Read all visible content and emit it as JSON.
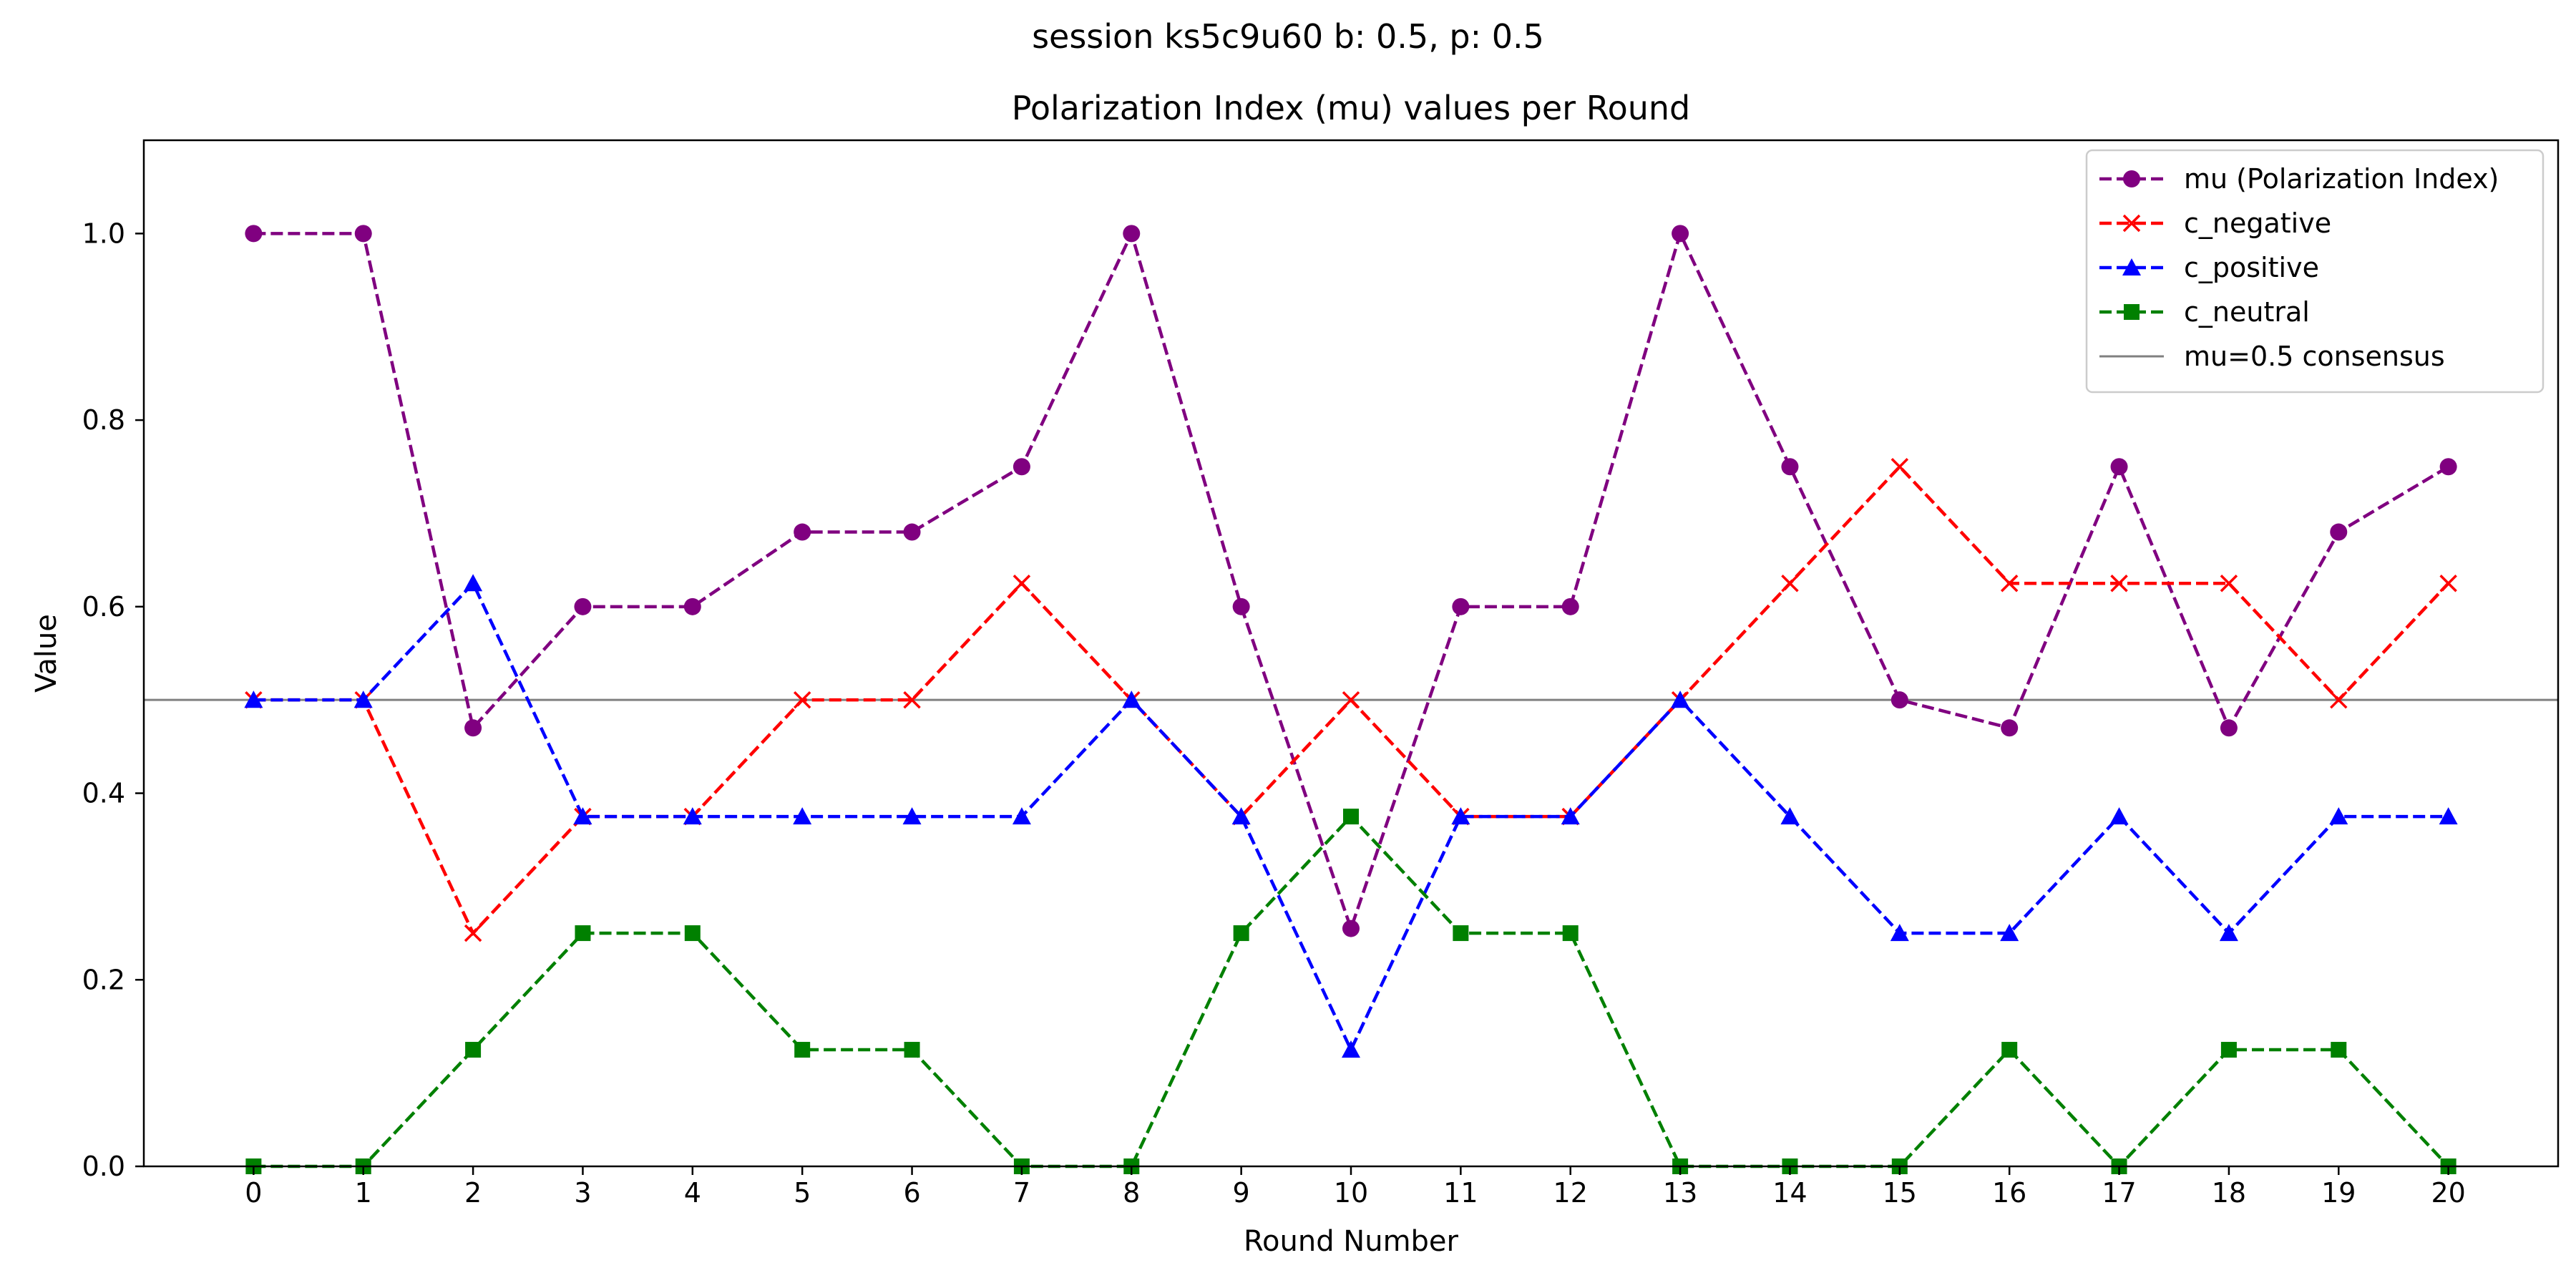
{
  "suptitle": "session ks5c9u60 b: 0.5, p: 0.5",
  "chart_data": {
    "type": "line",
    "title": "Polarization Index (mu) values per Round",
    "xlabel": "Round Number",
    "ylabel": "Value",
    "xlim": [
      -1,
      21
    ],
    "ylim": [
      0,
      1.1
    ],
    "x": [
      0,
      1,
      2,
      3,
      4,
      5,
      6,
      7,
      8,
      9,
      10,
      11,
      12,
      13,
      14,
      15,
      16,
      17,
      18,
      19,
      20
    ],
    "x_tick_labels": [
      "0",
      "1",
      "2",
      "3",
      "4",
      "5",
      "6",
      "7",
      "8",
      "9",
      "10",
      "11",
      "12",
      "13",
      "14",
      "15",
      "16",
      "17",
      "18",
      "19",
      "20"
    ],
    "y_ticks": [
      0.0,
      0.2,
      0.4,
      0.6,
      0.8,
      1.0
    ],
    "y_tick_labels": [
      "0.0",
      "0.2",
      "0.4",
      "0.6",
      "0.8",
      "1.0"
    ],
    "grid": false,
    "legend_position": "top-right",
    "series": [
      {
        "name": "mu (Polarization Index)",
        "color": "#800080",
        "linestyle": "dashed",
        "marker": "circle",
        "values": [
          1.0,
          1.0,
          0.47,
          0.6,
          0.6,
          0.68,
          0.68,
          0.75,
          1.0,
          0.6,
          0.255,
          0.6,
          0.6,
          1.0,
          0.75,
          0.5,
          0.47,
          0.75,
          0.47,
          0.68,
          0.75
        ]
      },
      {
        "name": "c_negative",
        "color": "#ff0000",
        "linestyle": "dashed",
        "marker": "x",
        "values": [
          0.5,
          0.5,
          0.25,
          0.375,
          0.375,
          0.5,
          0.5,
          0.625,
          0.5,
          0.375,
          0.5,
          0.375,
          0.375,
          0.5,
          0.625,
          0.75,
          0.625,
          0.625,
          0.625,
          0.5,
          0.625
        ]
      },
      {
        "name": "c_positive",
        "color": "#0000ff",
        "linestyle": "dashed",
        "marker": "triangle",
        "values": [
          0.5,
          0.5,
          0.625,
          0.375,
          0.375,
          0.375,
          0.375,
          0.375,
          0.5,
          0.375,
          0.125,
          0.375,
          0.375,
          0.5,
          0.375,
          0.25,
          0.25,
          0.375,
          0.25,
          0.375,
          0.375
        ]
      },
      {
        "name": "c_neutral",
        "color": "#008000",
        "linestyle": "dashed",
        "marker": "square",
        "values": [
          0.0,
          0.0,
          0.125,
          0.25,
          0.25,
          0.125,
          0.125,
          0.0,
          0.0,
          0.25,
          0.375,
          0.25,
          0.25,
          0.0,
          0.0,
          0.0,
          0.125,
          0.0,
          0.125,
          0.125,
          0.0
        ]
      }
    ],
    "reference_lines": [
      {
        "name": "mu=0.5 consensus",
        "y": 0.5,
        "color": "#808080",
        "linestyle": "solid"
      }
    ]
  }
}
